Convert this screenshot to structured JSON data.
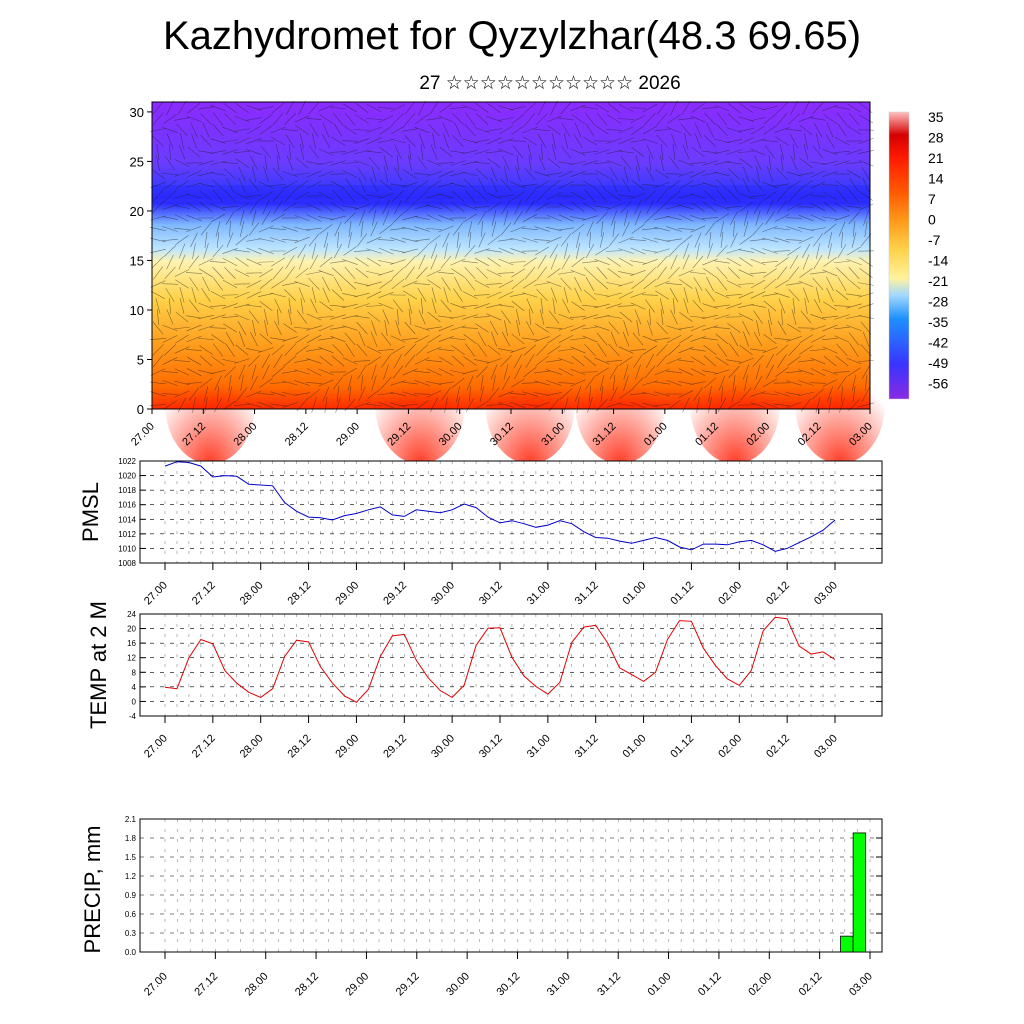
{
  "title": "Kazhydromet for Qyzylzhar(48.3 69.65)",
  "subtitle": "27 ☆☆☆☆☆☆☆☆☆☆☆ 2026",
  "chart_data": [
    {
      "type": "heatmap",
      "name": "cross-section",
      "description_title": "",
      "y_ticks": [
        0,
        5,
        10,
        15,
        20,
        25,
        30
      ],
      "ylim": [
        0,
        31
      ],
      "x_ticks": [
        "27.00",
        "27.12",
        "28.00",
        "28.12",
        "29.00",
        "29.12",
        "30.00",
        "30.12",
        "31.00",
        "31.12",
        "01.00",
        "01.12",
        "02.00",
        "02.12",
        "03.00"
      ],
      "colorbar_labels": [
        "35",
        "28",
        "21",
        "14",
        "7",
        "0",
        "-7",
        "-14",
        "-21",
        "-28",
        "-35",
        "-42",
        "-49",
        "-56"
      ],
      "colorbar_range": [
        -60,
        38
      ],
      "colors": [
        "#8a2be2",
        "#3a33ff",
        "#3aa0ff",
        "#9fd8ff",
        "#fff2a0",
        "#ffd24a",
        "#ff9a1a",
        "#ff5a00",
        "#ff1a00",
        "#d40000",
        "#ffb0b0"
      ]
    },
    {
      "type": "line",
      "name": "pmsl",
      "ylabel": "PMSL",
      "ylim": [
        1008,
        1022
      ],
      "y_ticks": [
        1008,
        1010,
        1012,
        1014,
        1016,
        1018,
        1020,
        1022
      ],
      "x_ticks": [
        "27.00",
        "27.12",
        "28.00",
        "28.12",
        "29.00",
        "29.12",
        "30.00",
        "30.12",
        "31.00",
        "31.12",
        "01.00",
        "01.12",
        "02.00",
        "02.12",
        "03.00"
      ],
      "color": "#0000cc",
      "values": [
        1021.3,
        1021.9,
        1021.8,
        1021.3,
        1019.8,
        1020.0,
        1019.9,
        1018.8,
        1018.7,
        1018.6,
        1016.3,
        1015.1,
        1014.3,
        1014.2,
        1013.9,
        1014.5,
        1014.8,
        1015.3,
        1015.7,
        1014.6,
        1014.4,
        1015.3,
        1015.1,
        1014.9,
        1015.3,
        1016.1,
        1015.6,
        1014.3,
        1013.5,
        1013.8,
        1013.4,
        1012.9,
        1013.2,
        1013.8,
        1013.4,
        1012.3,
        1011.5,
        1011.4,
        1011.0,
        1010.7,
        1011.1,
        1011.5,
        1011.1,
        1010.2,
        1009.8,
        1010.6,
        1010.6,
        1010.5,
        1010.9,
        1011.1,
        1010.5,
        1009.6,
        1010.0,
        1010.8,
        1011.6,
        1012.5,
        1013.9
      ]
    },
    {
      "type": "line",
      "name": "temp",
      "ylabel": "TEMP at 2 M",
      "ylim": [
        -4,
        24
      ],
      "y_ticks": [
        -4,
        0,
        4,
        8,
        12,
        16,
        20,
        24
      ],
      "x_ticks": [
        "27.00",
        "27.12",
        "28.00",
        "28.12",
        "29.00",
        "29.12",
        "30.00",
        "30.12",
        "31.00",
        "31.12",
        "01.00",
        "01.12",
        "02.00",
        "02.12",
        "03.00"
      ],
      "color": "#e00000",
      "values": [
        3.9,
        3.5,
        12.0,
        17.0,
        15.8,
        8.5,
        5.0,
        2.5,
        1.1,
        3.5,
        12.3,
        16.8,
        16.3,
        9.5,
        5.0,
        1.5,
        -0.2,
        3.3,
        12.4,
        18.0,
        18.4,
        11.3,
        6.5,
        3.0,
        1.1,
        4.4,
        15.4,
        20.1,
        20.2,
        12.1,
        7.0,
        4.1,
        2.0,
        5.2,
        16.2,
        20.4,
        20.9,
        16.0,
        9.2,
        7.4,
        5.5,
        8.0,
        17.0,
        22.2,
        22.0,
        14.6,
        9.9,
        6.2,
        4.4,
        8.5,
        19.4,
        23.1,
        22.7,
        15.2,
        13.0,
        13.6,
        11.5
      ]
    },
    {
      "type": "bar",
      "name": "precip",
      "ylabel": "PRECIP, mm",
      "ylim": [
        0.0,
        2.1
      ],
      "y_ticks": [
        "0.0",
        "0.3",
        "0.6",
        "0.9",
        "1.2",
        "1.5",
        "1.8",
        "2.1"
      ],
      "x_ticks": [
        "27.00",
        "27.12",
        "28.00",
        "28.12",
        "29.00",
        "29.12",
        "30.00",
        "30.12",
        "31.00",
        "31.12",
        "01.00",
        "01.12",
        "02.00",
        "02.12",
        "03.00"
      ],
      "color": "#00ff00",
      "bars": [
        {
          "x_step": 54.5,
          "width_steps": 1,
          "value": 0.25
        },
        {
          "x_step": 55.5,
          "width_steps": 1,
          "value": 1.88
        }
      ]
    }
  ]
}
